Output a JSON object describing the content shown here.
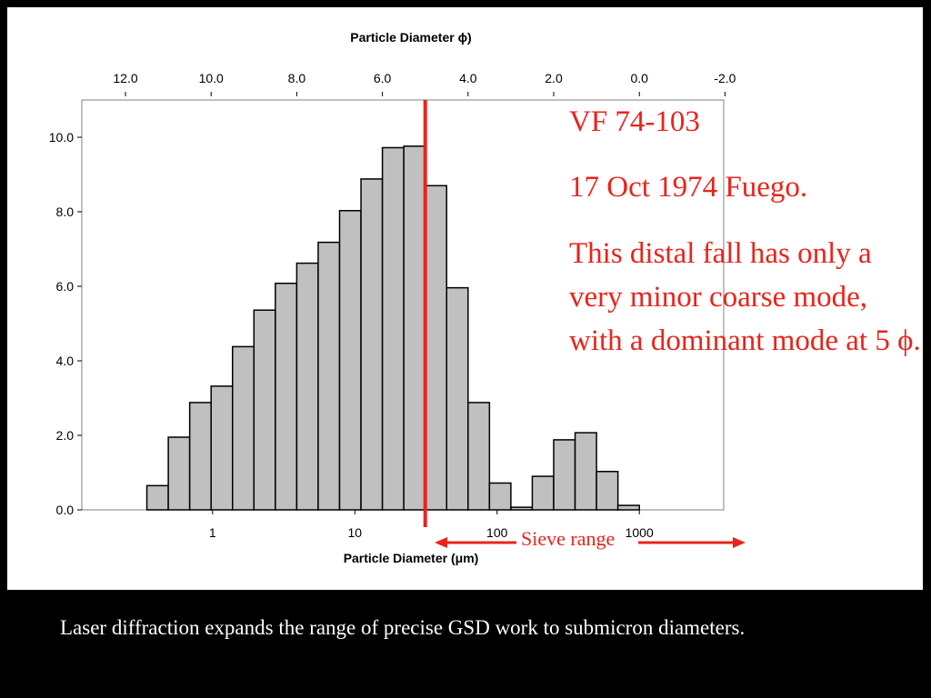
{
  "colors": {
    "background": "#000000",
    "panel": "#ffffff",
    "bar_fill": "#c0c0c0",
    "bar_stroke": "#000000",
    "accent_red": "#e8241c",
    "caption_text": "#ffffff"
  },
  "chart_data": {
    "type": "bar",
    "title": "Particle Diameter ϕ)",
    "xlabel": "Particle Diameter (μm)",
    "ylabel": "",
    "ylim": [
      0,
      11
    ],
    "y_ticks": [
      "0.0",
      "2.0",
      "4.0",
      "6.0",
      "8.0",
      "10.0"
    ],
    "top_axis_ticks": [
      "12.0",
      "10.0",
      "8.0",
      "6.0",
      "4.0",
      "2.0",
      "0.0",
      "-2.0"
    ],
    "bottom_axis_ticks": [
      "1",
      "10",
      "100",
      "1000"
    ],
    "grid": false,
    "legend": "none",
    "phi_bins": [
      11.25,
      10.75,
      10.25,
      9.75,
      9.25,
      8.75,
      8.25,
      7.75,
      7.25,
      6.75,
      6.25,
      5.75,
      5.25,
      4.75,
      4.25,
      3.75,
      3.25,
      2.75,
      2.25,
      1.75,
      1.25,
      0.75,
      0.25,
      -0.25
    ],
    "values": [
      0.65,
      1.95,
      2.88,
      3.32,
      4.38,
      5.36,
      6.08,
      6.62,
      7.18,
      8.03,
      8.88,
      9.72,
      9.76,
      8.7,
      5.96,
      2.88,
      0.72,
      0.07,
      0.9,
      1.88,
      2.07,
      1.03,
      0.12,
      0.0
    ],
    "reference_line_phi": 5.0
  },
  "annotations": {
    "sample_id": "VF 74-103",
    "sample_date": " 17 Oct 1974 Fuego.",
    "description": "This distal fall has only a very minor coarse mode, with a dominant mode at 5 ϕ.",
    "sieve_range_label": "Sieve range"
  },
  "caption": "Laser diffraction expands the range of precise GSD work to submicron diameters."
}
